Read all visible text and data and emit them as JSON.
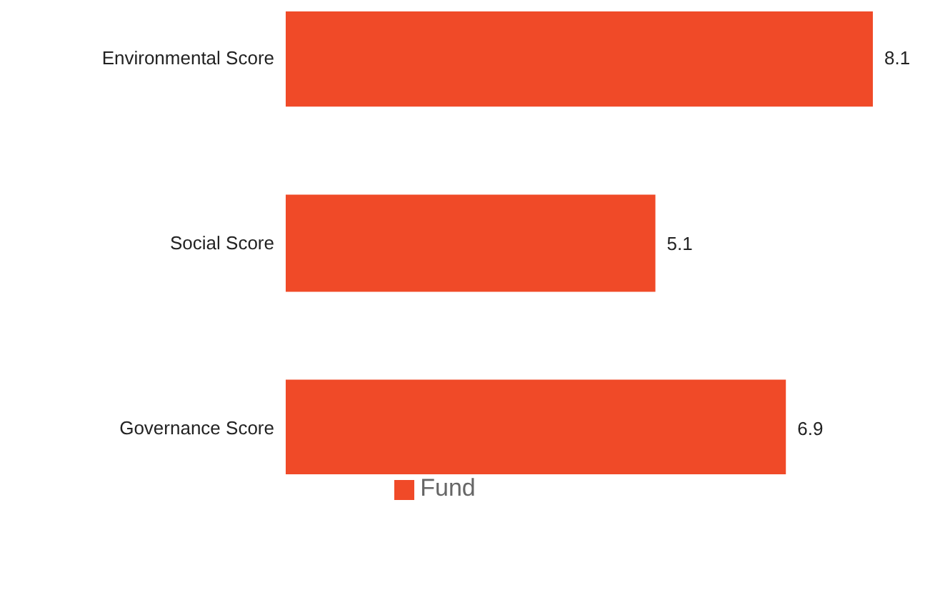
{
  "chart_data": {
    "type": "bar",
    "orientation": "horizontal",
    "categories": [
      "Environmental Score",
      "Social Score",
      "Governance Score"
    ],
    "series": [
      {
        "name": "Fund",
        "color": "#f04a28",
        "values": [
          8.1,
          5.1,
          6.9
        ]
      }
    ],
    "data_labels": true,
    "legend": "bottom",
    "grid": false
  }
}
